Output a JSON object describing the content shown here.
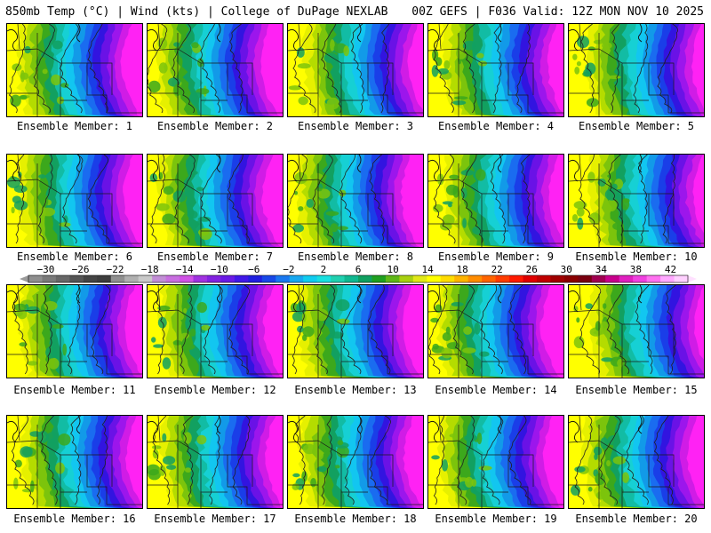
{
  "header": {
    "title": "850mb Temp (°C) | Wind (kts) | College of DuPage NEXLAB",
    "run_info": "00Z GEFS | F036 Valid: 12Z MON NOV 10 2025"
  },
  "members": [
    "Ensemble Member: 1",
    "Ensemble Member: 2",
    "Ensemble Member: 3",
    "Ensemble Member: 4",
    "Ensemble Member: 5",
    "Ensemble Member: 6",
    "Ensemble Member: 7",
    "Ensemble Member: 8",
    "Ensemble Member: 9",
    "Ensemble Member: 10",
    "Ensemble Member: 11",
    "Ensemble Member: 12",
    "Ensemble Member: 13",
    "Ensemble Member: 14",
    "Ensemble Member: 15",
    "Ensemble Member: 16",
    "Ensemble Member: 17",
    "Ensemble Member: 18",
    "Ensemble Member: 19",
    "Ensemble Member: 20"
  ],
  "colorbar": {
    "ticks": [
      "−30",
      "−26",
      "−22",
      "−18",
      "−14",
      "−10",
      "−6",
      "−2",
      "2",
      "6",
      "10",
      "14",
      "18",
      "22",
      "26",
      "30",
      "34",
      "38",
      "42"
    ],
    "min": -32,
    "max": 44,
    "first_tick": -30,
    "tick_step": 4,
    "colors": [
      "#8f8f8f",
      "#7a7a7a",
      "#676767",
      "#555555",
      "#444444",
      "#3d3d3d",
      "#909090",
      "#b0b0b0",
      "#c9c9c9",
      "#c28ed6",
      "#c86ee0",
      "#d052e6",
      "#a032e0",
      "#8222e0",
      "#6a1ae6",
      "#4018e8",
      "#2020e0",
      "#1848e8",
      "#1a78f0",
      "#18a8f0",
      "#10ccf0",
      "#18e0e0",
      "#20d0b0",
      "#10b890",
      "#10a060",
      "#20a020",
      "#60b818",
      "#a8d010",
      "#e0e818",
      "#ffff00",
      "#ffdc00",
      "#ffb400",
      "#ff8c00",
      "#ff6400",
      "#ff3c00",
      "#ff1a00",
      "#e00000",
      "#c00000",
      "#a00000",
      "#8a0000",
      "#7a0010",
      "#a00050",
      "#c8008c",
      "#e020c0",
      "#f040e0",
      "#ff70f0",
      "#ffa8ff",
      "#ffd0ff"
    ]
  }
}
